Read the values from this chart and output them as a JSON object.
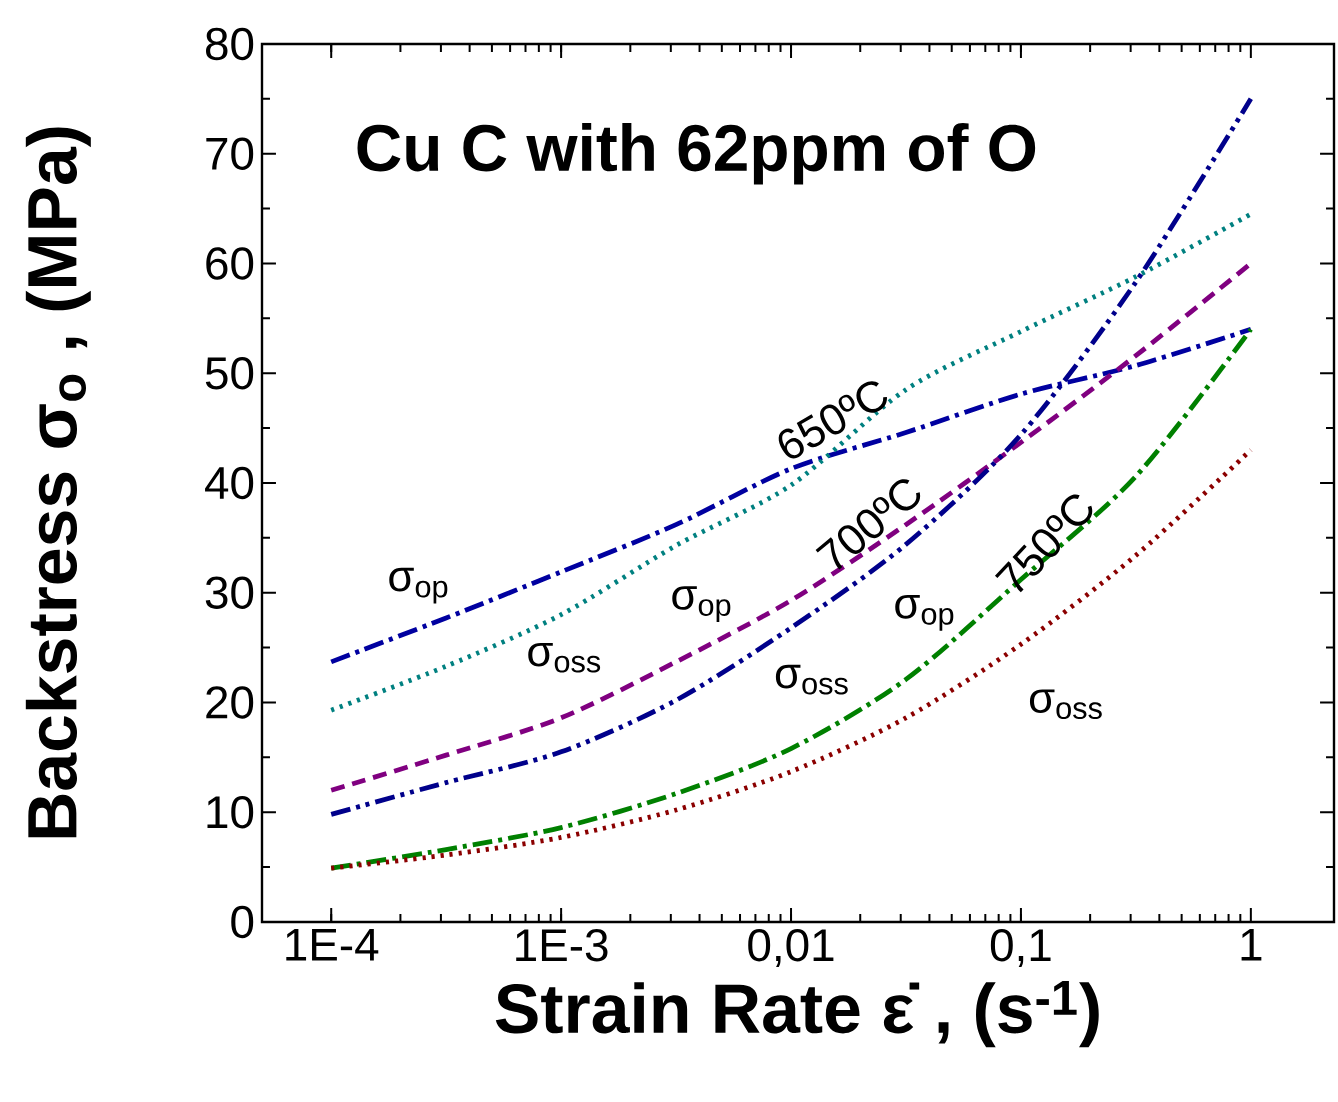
{
  "chart_data": {
    "type": "line",
    "title": "Cu C with 62ppm of O",
    "xlabel": "Strain Rate ε̇ , (s$^{-1}$)",
    "ylabel": "Backstress σ$_{o}$ ,  (MPa)",
    "log": "x",
    "xlim": [
      5e-05,
      2.3
    ],
    "ylim": [
      0,
      80
    ],
    "xticks": [
      {
        "value": 0.0001,
        "label": "1E-4"
      },
      {
        "value": 0.001,
        "label": "1E-3"
      },
      {
        "value": 0.01,
        "label": "0,01"
      },
      {
        "value": 0.1,
        "label": "0,1"
      },
      {
        "value": 1,
        "label": "1"
      }
    ],
    "yticks": [
      0,
      10,
      20,
      30,
      40,
      50,
      60,
      70,
      80
    ],
    "x": [
      0.0001,
      0.000316,
      0.001,
      0.00316,
      0.01,
      0.0316,
      0.1,
      0.316,
      1
    ],
    "series": [
      {
        "color": "#0000a0",
        "line_style": "dashdot",
        "values": [
          23.7,
          27.7,
          31.9,
          36.2,
          41.3,
          44.6,
          48.1,
          50.7,
          54
        ]
      },
      {
        "color": "#008080",
        "line_style": "dotted",
        "values": [
          19.3,
          23.3,
          28,
          34.3,
          39.8,
          48.5,
          53.8,
          58.8,
          64.5
        ]
      },
      {
        "color": "#800080",
        "line_style": "dashed",
        "values": [
          12,
          15.2,
          18.6,
          23.7,
          29.3,
          36.2,
          43.7,
          51.6,
          60
        ]
      },
      {
        "color": "#00008b",
        "line_style": "dashdotdot",
        "values": [
          9.8,
          12.7,
          15.5,
          20.2,
          26.8,
          34.4,
          44.4,
          58.3,
          75
        ]
      },
      {
        "color": "#008000",
        "line_style": "dashdot",
        "values": [
          4.9,
          6.6,
          8.6,
          11.7,
          15.8,
          22.1,
          31.2,
          40.6,
          54
        ]
      },
      {
        "color": "#8b0000",
        "line_style": "dotted",
        "values": [
          4.9,
          6.1,
          7.7,
          10.2,
          13.7,
          18.6,
          25.3,
          33.4,
          43
        ]
      }
    ],
    "annotations": [
      "σ$_{op}$",
      "σ$_{oss}$",
      "σ$_{op}$",
      "σ$_{oss}$",
      "σ$_{op}$",
      "σ$_{oss}$",
      "650ºC",
      "700ºC",
      "750ºC"
    ],
    "grid": false
  }
}
